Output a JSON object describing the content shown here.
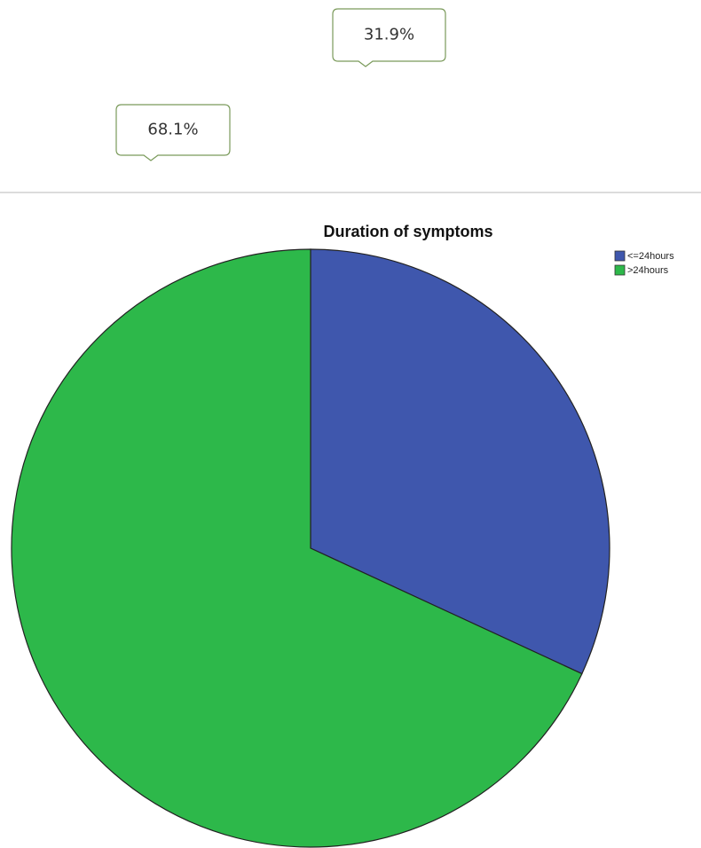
{
  "chart_data": {
    "type": "pie",
    "title": "Duration of symptoms",
    "categories": [
      "<=24hours",
      ">24hours"
    ],
    "values": [
      31.9,
      68.1
    ],
    "value_labels": [
      "31.9%",
      "68.1%"
    ],
    "colors": [
      "#3f57ad",
      "#2db84a"
    ],
    "legend": "top-right"
  }
}
